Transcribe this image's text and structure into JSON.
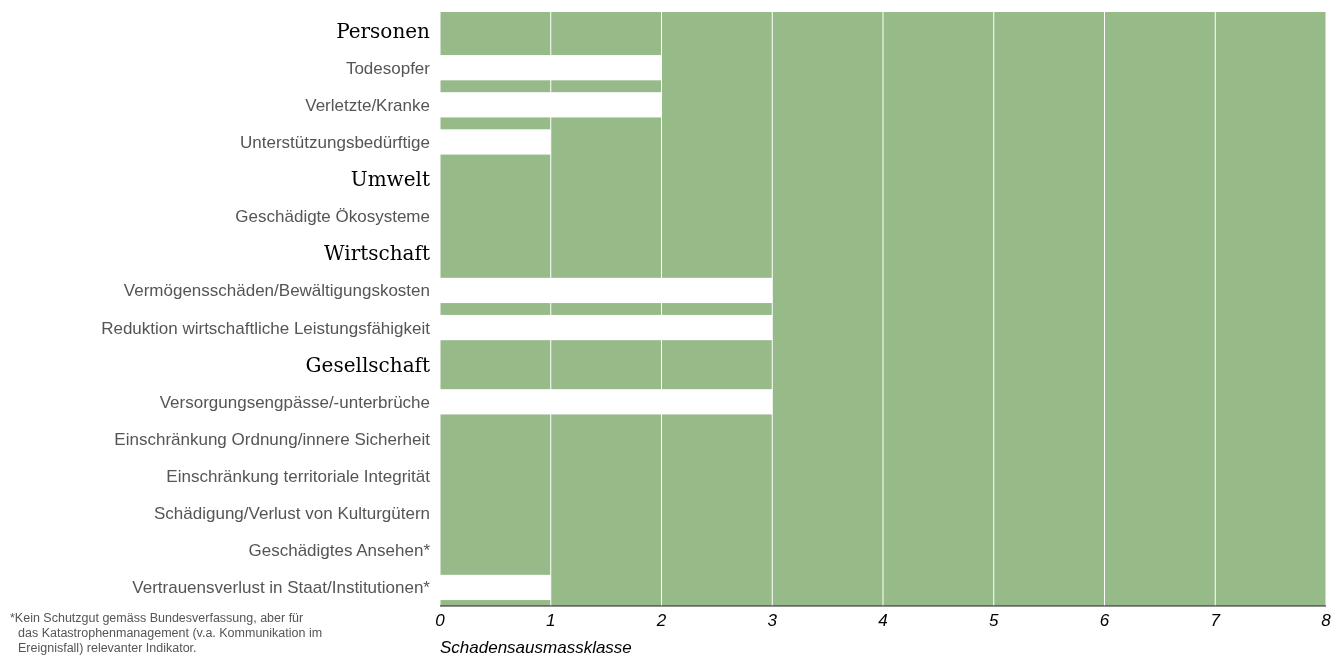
{
  "chart_data": {
    "type": "bar",
    "orientation": "horizontal",
    "categories": [
      "Personen",
      "Todesopfer",
      "Verletzte/Kranke",
      "Unterstützungsbedürftige",
      "Umwelt",
      "Geschädigte Ökosysteme",
      "Wirtschaft",
      "Vermögensschäden/Bewältigungskosten",
      "Reduktion wirtschaftliche Leistungsfähigkeit",
      "Gesellschaft",
      "Versorgungsengpässe/-unterbrüche",
      "Einschränkung Ordnung/innere Sicherheit",
      "Einschränkung territoriale Integrität",
      "Schädigung/Verlust von Kulturgütern",
      "Geschädigtes Ansehen*",
      "Vertrauensverlust in Staat/Institutionen*"
    ],
    "values": [
      null,
      2,
      2,
      1,
      null,
      0,
      null,
      3,
      3,
      null,
      3,
      0,
      0,
      0,
      0,
      1
    ],
    "color": "#ffffff",
    "xlim": [
      0,
      8
    ],
    "xticks": [
      0,
      1,
      2,
      3,
      4,
      5,
      6,
      7,
      8
    ],
    "xlabel": "Schadensausmassklasse",
    "grid": "x",
    "annotations": [
      "*Kein Schutzgut gemäss Bundesverfassung, aber für das Katastrophenmanagement (v.a. Kommunikation im Ereignisfall) relevanter Indikator."
    ]
  }
}
